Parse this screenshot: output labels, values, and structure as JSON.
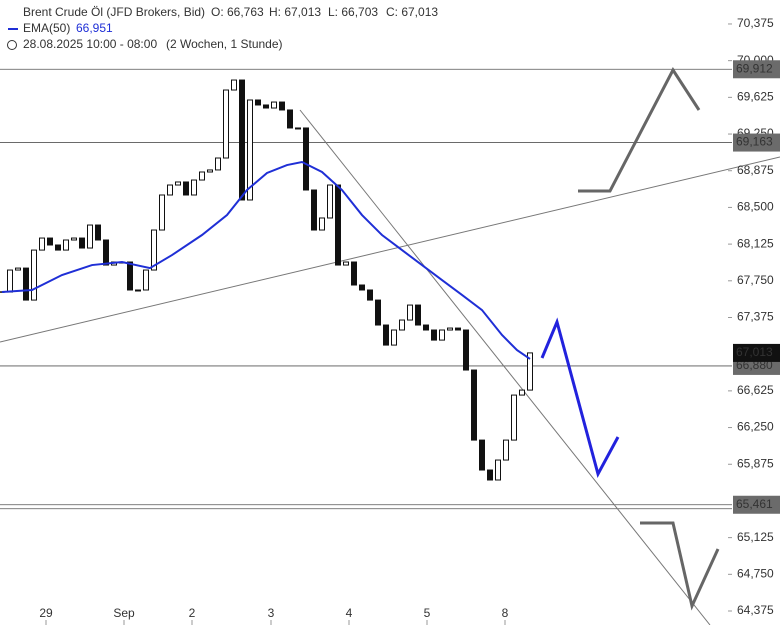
{
  "chart_data": {
    "type": "candlestick",
    "title": "Brent Crude Öl (JFD Brokers, Bid)",
    "ohlc_text": [
      "O: 66,763",
      "H: 67,013",
      "L: 66,703",
      "C: 67,013"
    ],
    "subtitle": "28.08.2025 10:00 - 08:00",
    "period": "(2 Wochen, 1 Stunde)",
    "xlim": [
      -0.25,
      97.25
    ],
    "ylim": [
      64.232,
      70.62
    ],
    "xticks": [
      {
        "value": 5.5,
        "label": "29"
      },
      {
        "value": 15.25,
        "label": "Sep"
      },
      {
        "value": 23.75,
        "label": "2"
      },
      {
        "value": 33.625,
        "label": "3"
      },
      {
        "value": 43.375,
        "label": "4"
      },
      {
        "value": 53.125,
        "label": "5"
      },
      {
        "value": 62.875,
        "label": "8"
      }
    ],
    "yticks": [
      {
        "value": 70.375,
        "label": "70,375"
      },
      {
        "value": 70.0,
        "label": "70,000"
      },
      {
        "value": 69.625,
        "label": "69,625"
      },
      {
        "value": 69.25,
        "label": "69,250"
      },
      {
        "value": 68.875,
        "label": "68,875"
      },
      {
        "value": 68.5,
        "label": "68,500"
      },
      {
        "value": 68.125,
        "label": "68,125"
      },
      {
        "value": 67.75,
        "label": "67,750"
      },
      {
        "value": 67.375,
        "label": "67,375"
      },
      {
        "value": 66.625,
        "label": "66,625"
      },
      {
        "value": 66.25,
        "label": "66,250"
      },
      {
        "value": 65.875,
        "label": "65,875"
      },
      {
        "value": 65.125,
        "label": "65,125"
      },
      {
        "value": 64.75,
        "label": "64,750"
      },
      {
        "value": 64.375,
        "label": "64,375"
      }
    ],
    "close": [
      67.635,
      67.86,
      67.88,
      67.553,
      68.064,
      68.187,
      68.116,
      68.064,
      68.167,
      68.187,
      68.085,
      68.32,
      68.167,
      67.911,
      67.942,
      67.942,
      67.656,
      67.656,
      67.86,
      68.269,
      68.627,
      68.729,
      68.76,
      68.627,
      68.78,
      68.862,
      68.883,
      69.005,
      69.7,
      69.802,
      68.576,
      69.598,
      69.547,
      69.516,
      69.577,
      69.496,
      69.312,
      69.312,
      68.678,
      68.269,
      68.392,
      68.729,
      67.911,
      67.942,
      67.707,
      67.656,
      67.553,
      67.298,
      67.093,
      67.247,
      67.349,
      67.502,
      67.298,
      67.247,
      67.144,
      67.247,
      67.267,
      67.247,
      66.838,
      66.122,
      65.816,
      65.714,
      65.918,
      66.122,
      66.582,
      66.633,
      67.013
    ],
    "ema": {
      "name": "EMA(50)",
      "last_label": "66,951",
      "color": "#1f2fd6",
      "x": [
        0,
        3.75,
        7.5,
        11.25,
        15,
        18.5,
        21.25,
        25,
        28.125,
        30.625,
        33.125,
        35.625,
        37.5,
        40,
        42.5,
        45,
        47.5,
        50,
        52.5,
        55,
        57.5,
        60,
        62.5,
        64.375,
        66
      ],
      "values": [
        67.635,
        67.656,
        67.809,
        67.911,
        67.942,
        67.88,
        68.013,
        68.218,
        68.422,
        68.678,
        68.852,
        68.933,
        68.964,
        68.862,
        68.678,
        68.422,
        68.218,
        68.064,
        67.911,
        67.758,
        67.605,
        67.451,
        67.196,
        67.042,
        66.951
      ]
    },
    "levels": [
      {
        "value": 69.912,
        "label": "69,912"
      },
      {
        "value": 69.163,
        "label": "69,163"
      },
      {
        "value": 66.88,
        "label": "66,880"
      },
      {
        "value": 65.461,
        "label": "65,461"
      },
      65.42
    ],
    "last_price": {
      "value": 67.013,
      "label": "67,013"
    }
  }
}
